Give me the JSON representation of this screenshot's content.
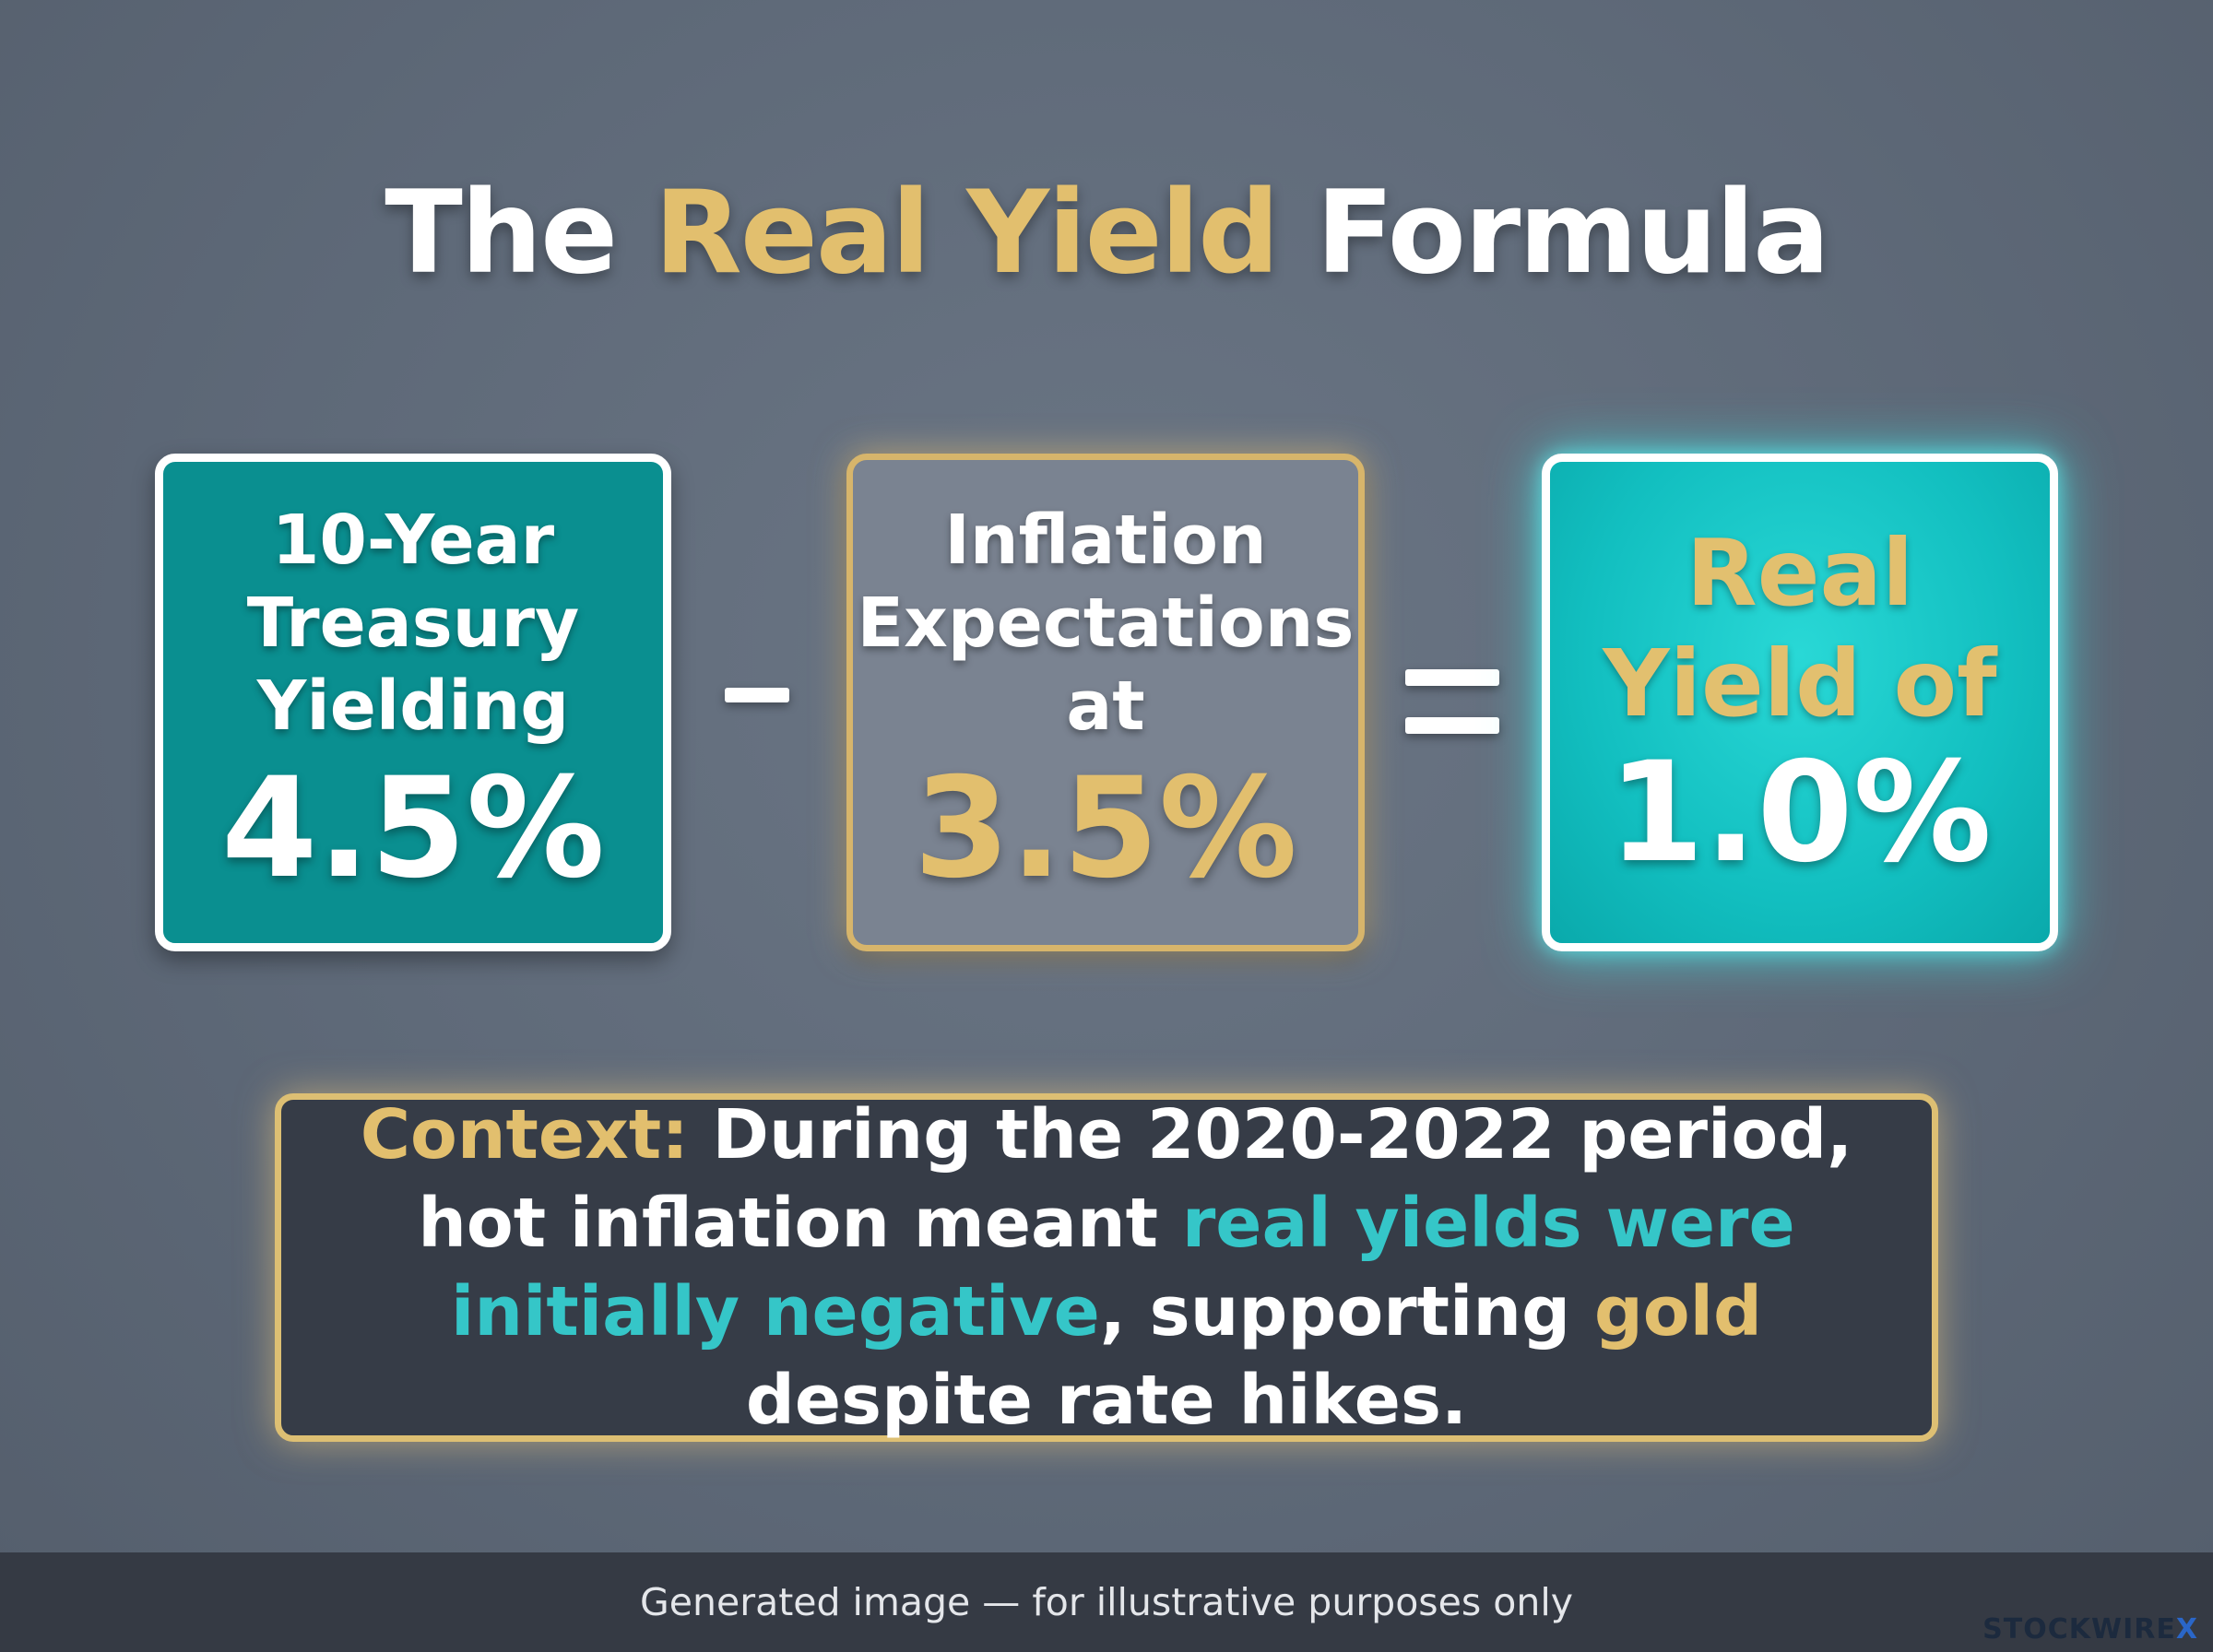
{
  "title": {
    "part1": "The",
    "part2": "Real Yield",
    "part3": "Formula"
  },
  "formula": {
    "box1": {
      "line1": "10-Year",
      "line2": "Treasury",
      "line3": "Yielding",
      "value": "4.5%"
    },
    "operator1": "-",
    "box2": {
      "line1": "Inflation",
      "line2": "Expectations",
      "line3": "at",
      "value": "3.5%"
    },
    "operator2": "=",
    "box3": {
      "line1": "Real",
      "line2": "Yield of",
      "value": "1.0%"
    }
  },
  "context": {
    "label": "Context:",
    "text1": " During the 2020-2022 period, hot inflation meant ",
    "highlight1": "real yields were initially negative",
    "text2": ", supporting ",
    "highlight2": "gold",
    "text3": " despite rate hikes."
  },
  "footer": {
    "disclaimer": "Generated image — for illustrative purposes only",
    "brand": "STOCKWIRE",
    "brand_suffix": "X"
  },
  "colors": {
    "gold": "#e2bf6e",
    "teal": "#35c6c8",
    "box1_bg": "#0a8f90",
    "box2_bg": "#7a8391",
    "box3_bg": "#12bfc0",
    "context_bg": "#363c47"
  }
}
